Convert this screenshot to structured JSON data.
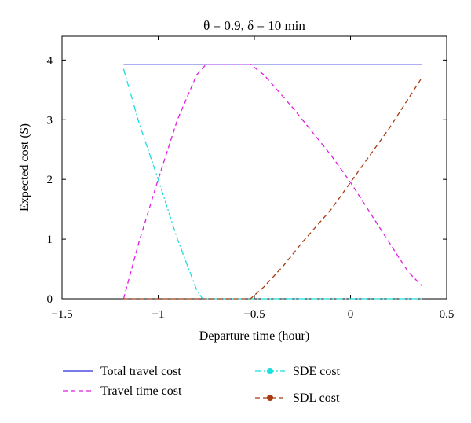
{
  "chart_data": {
    "type": "line",
    "title": "θ = 0.9, δ = 10 min",
    "xlabel": "Departure time (hour)",
    "ylabel": "Expected cost ($)",
    "xlim": [
      -1.5,
      0.5
    ],
    "ylim": [
      0,
      4.4
    ],
    "xticks": [
      -1.5,
      -1,
      -0.5,
      0,
      0.5
    ],
    "xtick_labels": [
      "−1.5",
      "−1",
      "−0.5",
      "0",
      "0.5"
    ],
    "yticks": [
      0,
      1,
      2,
      3,
      4
    ],
    "ytick_labels": [
      "0",
      "1",
      "2",
      "3",
      "4"
    ],
    "grid": false,
    "legend_position": "bottom",
    "series": [
      {
        "name": "Total travel cost",
        "color": "#2a2ad6",
        "style": "solid",
        "marker": "none",
        "x": [
          -1.18,
          0.37
        ],
        "y": [
          3.93,
          3.93
        ]
      },
      {
        "name": "Travel time cost",
        "color": "#e01ce0",
        "style": "dashed",
        "marker": "none",
        "x": [
          -1.18,
          -1.1,
          -1.0,
          -0.9,
          -0.8,
          -0.75,
          -0.7,
          -0.6,
          -0.52,
          -0.45,
          -0.3,
          -0.1,
          0.0,
          0.1,
          0.2,
          0.3,
          0.37
        ],
        "y": [
          0.0,
          0.95,
          2.0,
          3.0,
          3.75,
          3.93,
          3.93,
          3.93,
          3.93,
          3.75,
          3.2,
          2.4,
          1.95,
          1.45,
          0.95,
          0.45,
          0.22
        ]
      },
      {
        "name": "SDE cost",
        "color": "#18dede",
        "style": "dashdot",
        "marker": "circle",
        "x": [
          -1.18,
          -1.1,
          -1.0,
          -0.9,
          -0.8,
          -0.77,
          -0.5,
          0.0,
          0.37
        ],
        "y": [
          3.85,
          2.95,
          2.0,
          1.0,
          0.15,
          0.0,
          0.0,
          0.0,
          0.0
        ]
      },
      {
        "name": "SDL cost",
        "color": "#a83a10",
        "style": "dashed",
        "marker": "circle",
        "x": [
          -1.18,
          -0.8,
          -0.52,
          -0.45,
          -0.35,
          -0.25,
          -0.1,
          0.0,
          0.1,
          0.2,
          0.3,
          0.37
        ],
        "y": [
          0.0,
          0.0,
          0.0,
          0.2,
          0.55,
          0.95,
          1.5,
          1.95,
          2.4,
          2.85,
          3.35,
          3.7
        ]
      }
    ]
  }
}
